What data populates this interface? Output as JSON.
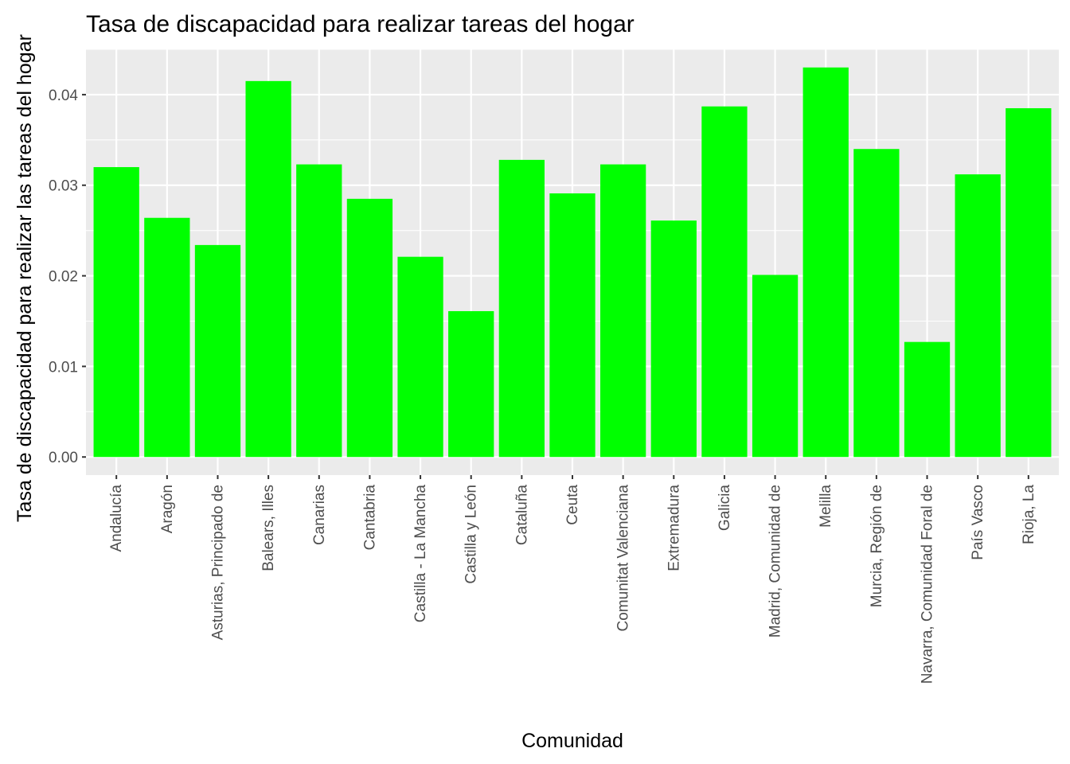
{
  "chart_data": {
    "type": "bar",
    "title": "Tasa de discapacidad para realizar tareas del hogar",
    "xlabel": "Comunidad",
    "ylabel": "Tasa de discapacidad para realizar las tareas del hogar",
    "categories": [
      "Andalucía",
      "Aragón",
      "Asturias, Principado de",
      "Balears, Illes",
      "Canarias",
      "Cantabria",
      "Castilla - La Mancha",
      "Castilla y León",
      "Cataluña",
      "Ceuta",
      "Comunitat Valenciana",
      "Extremadura",
      "Galicia",
      "Madrid, Comunidad de",
      "Melilla",
      "Murcia, Región de",
      "Navarra, Comunidad Foral de",
      "País Vasco",
      "Rioja, La"
    ],
    "values": [
      0.032,
      0.0264,
      0.0234,
      0.0415,
      0.0323,
      0.0285,
      0.0221,
      0.0161,
      0.0328,
      0.0291,
      0.0323,
      0.0261,
      0.0387,
      0.0201,
      0.043,
      0.034,
      0.0127,
      0.0312,
      0.0385
    ],
    "yticks": [
      "0.00",
      "0.01",
      "0.02",
      "0.03",
      "0.04"
    ],
    "ylim": [
      -0.002,
      0.045
    ],
    "grid": true,
    "legend": "none",
    "colors": {
      "bar": "#00FF00",
      "panel": "#EBEBEB",
      "grid": "#FFFFFF"
    }
  }
}
